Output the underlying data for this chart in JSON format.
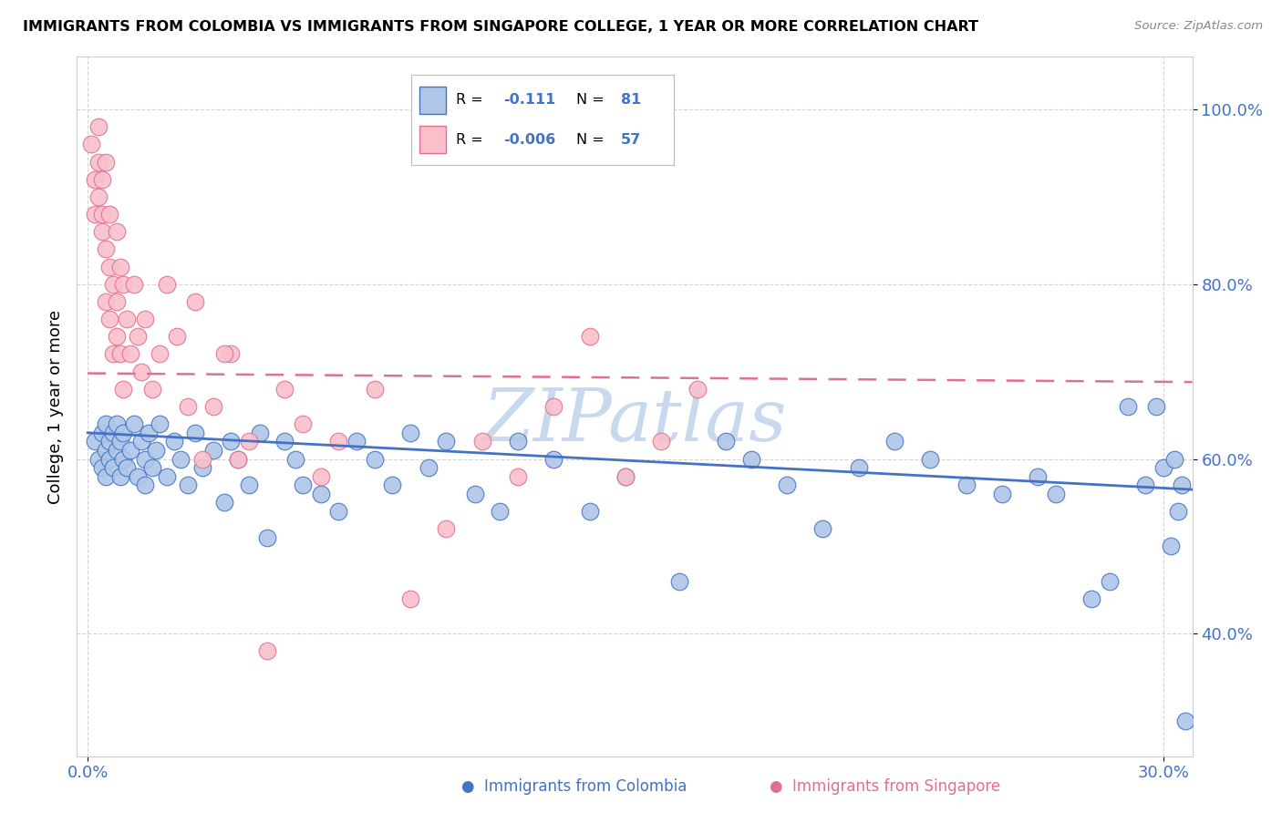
{
  "title": "IMMIGRANTS FROM COLOMBIA VS IMMIGRANTS FROM SINGAPORE COLLEGE, 1 YEAR OR MORE CORRELATION CHART",
  "source": "Source: ZipAtlas.com",
  "ylabel": "College, 1 year or more",
  "xlim": [
    -0.003,
    0.308
  ],
  "ylim": [
    0.26,
    1.06
  ],
  "yticks": [
    0.4,
    0.6,
    0.8,
    1.0
  ],
  "xticks": [
    0.0,
    0.3
  ],
  "blue_R": "-0.111",
  "blue_N": "81",
  "pink_R": "-0.006",
  "pink_N": "57",
  "blue_fill": "#aec6e8",
  "blue_edge": "#4472c4",
  "pink_fill": "#f9c0cb",
  "pink_edge": "#e07090",
  "blue_line_color": "#4472c4",
  "pink_line_color": "#e07090",
  "legend_R_color": "#4472c4",
  "tick_color": "#4472c4",
  "grid_color": "#d0d0d0",
  "watermark_text": "ZIPatlas",
  "watermark_color": "#c8d8ee",
  "blue_trend_x0": 0.0,
  "blue_trend_x1": 0.308,
  "blue_trend_y0": 0.63,
  "blue_trend_y1": 0.565,
  "pink_trend_x0": 0.0,
  "pink_trend_x1": 0.308,
  "pink_trend_y0": 0.698,
  "pink_trend_y1": 0.688,
  "blue_x": [
    0.002,
    0.003,
    0.004,
    0.004,
    0.005,
    0.005,
    0.005,
    0.006,
    0.006,
    0.007,
    0.007,
    0.008,
    0.008,
    0.009,
    0.009,
    0.01,
    0.01,
    0.011,
    0.012,
    0.013,
    0.014,
    0.015,
    0.016,
    0.016,
    0.017,
    0.018,
    0.019,
    0.02,
    0.022,
    0.024,
    0.026,
    0.028,
    0.03,
    0.032,
    0.035,
    0.038,
    0.04,
    0.042,
    0.045,
    0.048,
    0.05,
    0.055,
    0.058,
    0.06,
    0.065,
    0.07,
    0.075,
    0.08,
    0.085,
    0.09,
    0.095,
    0.1,
    0.108,
    0.115,
    0.12,
    0.13,
    0.14,
    0.15,
    0.165,
    0.178,
    0.185,
    0.195,
    0.205,
    0.215,
    0.225,
    0.235,
    0.245,
    0.255,
    0.265,
    0.27,
    0.28,
    0.285,
    0.29,
    0.295,
    0.298,
    0.3,
    0.302,
    0.303,
    0.304,
    0.305,
    0.306
  ],
  "blue_y": [
    0.62,
    0.6,
    0.63,
    0.59,
    0.61,
    0.64,
    0.58,
    0.62,
    0.6,
    0.63,
    0.59,
    0.61,
    0.64,
    0.58,
    0.62,
    0.6,
    0.63,
    0.59,
    0.61,
    0.64,
    0.58,
    0.62,
    0.6,
    0.57,
    0.63,
    0.59,
    0.61,
    0.64,
    0.58,
    0.62,
    0.6,
    0.57,
    0.63,
    0.59,
    0.61,
    0.55,
    0.62,
    0.6,
    0.57,
    0.63,
    0.51,
    0.62,
    0.6,
    0.57,
    0.56,
    0.54,
    0.62,
    0.6,
    0.57,
    0.63,
    0.59,
    0.62,
    0.56,
    0.54,
    0.62,
    0.6,
    0.54,
    0.58,
    0.46,
    0.62,
    0.6,
    0.57,
    0.52,
    0.59,
    0.62,
    0.6,
    0.57,
    0.56,
    0.58,
    0.56,
    0.44,
    0.46,
    0.66,
    0.57,
    0.66,
    0.59,
    0.5,
    0.6,
    0.54,
    0.57,
    0.3
  ],
  "pink_x": [
    0.001,
    0.002,
    0.002,
    0.003,
    0.003,
    0.003,
    0.004,
    0.004,
    0.004,
    0.005,
    0.005,
    0.005,
    0.006,
    0.006,
    0.006,
    0.007,
    0.007,
    0.008,
    0.008,
    0.008,
    0.009,
    0.009,
    0.01,
    0.01,
    0.011,
    0.012,
    0.013,
    0.014,
    0.015,
    0.016,
    0.018,
    0.02,
    0.022,
    0.025,
    0.028,
    0.03,
    0.035,
    0.04,
    0.045,
    0.05,
    0.055,
    0.06,
    0.065,
    0.07,
    0.08,
    0.09,
    0.1,
    0.11,
    0.12,
    0.13,
    0.14,
    0.15,
    0.16,
    0.17,
    0.038,
    0.042,
    0.032
  ],
  "pink_y": [
    0.96,
    0.92,
    0.88,
    0.98,
    0.94,
    0.9,
    0.86,
    0.92,
    0.88,
    0.94,
    0.84,
    0.78,
    0.88,
    0.82,
    0.76,
    0.72,
    0.8,
    0.86,
    0.78,
    0.74,
    0.82,
    0.72,
    0.8,
    0.68,
    0.76,
    0.72,
    0.8,
    0.74,
    0.7,
    0.76,
    0.68,
    0.72,
    0.8,
    0.74,
    0.66,
    0.78,
    0.66,
    0.72,
    0.62,
    0.38,
    0.68,
    0.64,
    0.58,
    0.62,
    0.68,
    0.44,
    0.52,
    0.62,
    0.58,
    0.66,
    0.74,
    0.58,
    0.62,
    0.68,
    0.72,
    0.6,
    0.6
  ]
}
